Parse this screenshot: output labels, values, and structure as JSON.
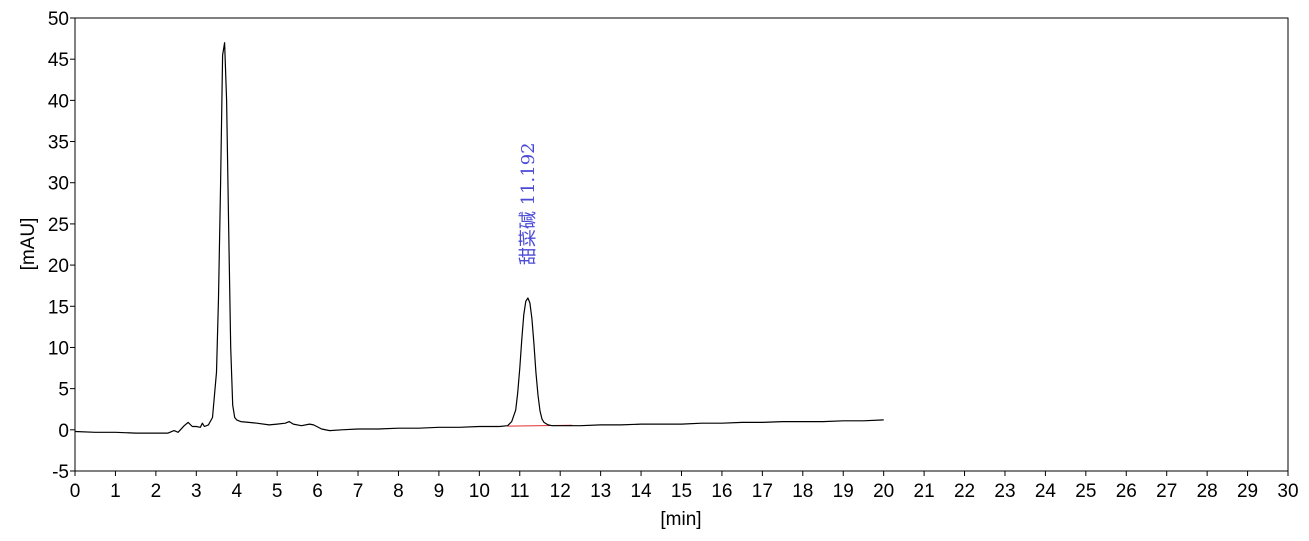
{
  "chart_data": {
    "type": "line",
    "xlabel": "[min]",
    "ylabel": "[mAU]",
    "xlim": [
      0,
      30
    ],
    "ylim": [
      -5,
      50
    ],
    "x_ticks": [
      0,
      1,
      2,
      3,
      4,
      5,
      6,
      7,
      8,
      9,
      10,
      11,
      12,
      13,
      14,
      15,
      16,
      17,
      18,
      19,
      20,
      21,
      22,
      23,
      24,
      25,
      26,
      27,
      28,
      29,
      30
    ],
    "y_ticks": [
      -5,
      0,
      5,
      10,
      15,
      20,
      25,
      30,
      35,
      40,
      45,
      50
    ],
    "grid": false,
    "legend": "none",
    "colors": {
      "trace": "#000000",
      "baseline": "#e03030",
      "annotation": "#4a4ad6"
    },
    "series": [
      {
        "x": [
          0.0,
          0.5,
          1.0,
          1.5,
          2.0,
          2.3,
          2.45,
          2.55,
          2.7,
          2.8,
          2.9,
          3.0,
          3.1,
          3.15,
          3.2,
          3.3,
          3.4,
          3.5,
          3.55,
          3.6,
          3.65,
          3.7,
          3.75,
          3.8,
          3.85,
          3.9,
          3.95,
          4.0,
          4.05,
          4.1,
          4.3,
          4.5,
          4.8,
          5.0,
          5.2,
          5.3,
          5.4,
          5.6,
          5.8,
          5.9,
          6.1,
          6.3,
          6.6,
          7.0,
          7.5,
          8.0,
          8.5,
          9.0,
          9.5,
          10.0,
          10.5,
          10.7,
          10.8,
          10.9,
          10.95,
          11.0,
          11.05,
          11.1,
          11.15,
          11.2,
          11.25,
          11.3,
          11.35,
          11.4,
          11.45,
          11.5,
          11.55,
          11.6,
          11.7,
          11.8,
          12.0,
          12.5,
          13.0,
          13.5,
          14.0,
          14.5,
          15.0,
          15.5,
          16.0,
          16.5,
          17.0,
          17.5,
          18.0,
          18.5,
          19.0,
          19.5,
          20.0
        ],
        "y": [
          -0.2,
          -0.3,
          -0.3,
          -0.4,
          -0.4,
          -0.4,
          -0.1,
          -0.3,
          0.5,
          0.9,
          0.4,
          0.4,
          0.3,
          0.8,
          0.4,
          0.6,
          1.5,
          7.0,
          16.0,
          30.0,
          45.5,
          47.0,
          40.0,
          25.0,
          10.0,
          3.0,
          1.5,
          1.2,
          1.1,
          1.0,
          0.9,
          0.8,
          0.6,
          0.7,
          0.8,
          1.0,
          0.7,
          0.5,
          0.7,
          0.6,
          0.1,
          -0.1,
          0.0,
          0.1,
          0.1,
          0.2,
          0.2,
          0.3,
          0.3,
          0.4,
          0.4,
          0.5,
          1.0,
          2.4,
          4.5,
          7.5,
          11.0,
          14.0,
          15.6,
          16.0,
          15.4,
          13.5,
          10.5,
          7.0,
          4.2,
          2.3,
          1.3,
          0.9,
          0.6,
          0.5,
          0.5,
          0.5,
          0.6,
          0.6,
          0.7,
          0.7,
          0.7,
          0.8,
          0.8,
          0.9,
          0.9,
          1.0,
          1.0,
          1.0,
          1.1,
          1.1,
          1.2
        ]
      }
    ],
    "baselines": [
      {
        "x": [
          10.7,
          12.3
        ],
        "y": [
          0.45,
          0.55
        ]
      }
    ],
    "annotations": [
      {
        "text": "甜菜碱  11.192",
        "x": 11.2,
        "y": 20
      }
    ]
  }
}
